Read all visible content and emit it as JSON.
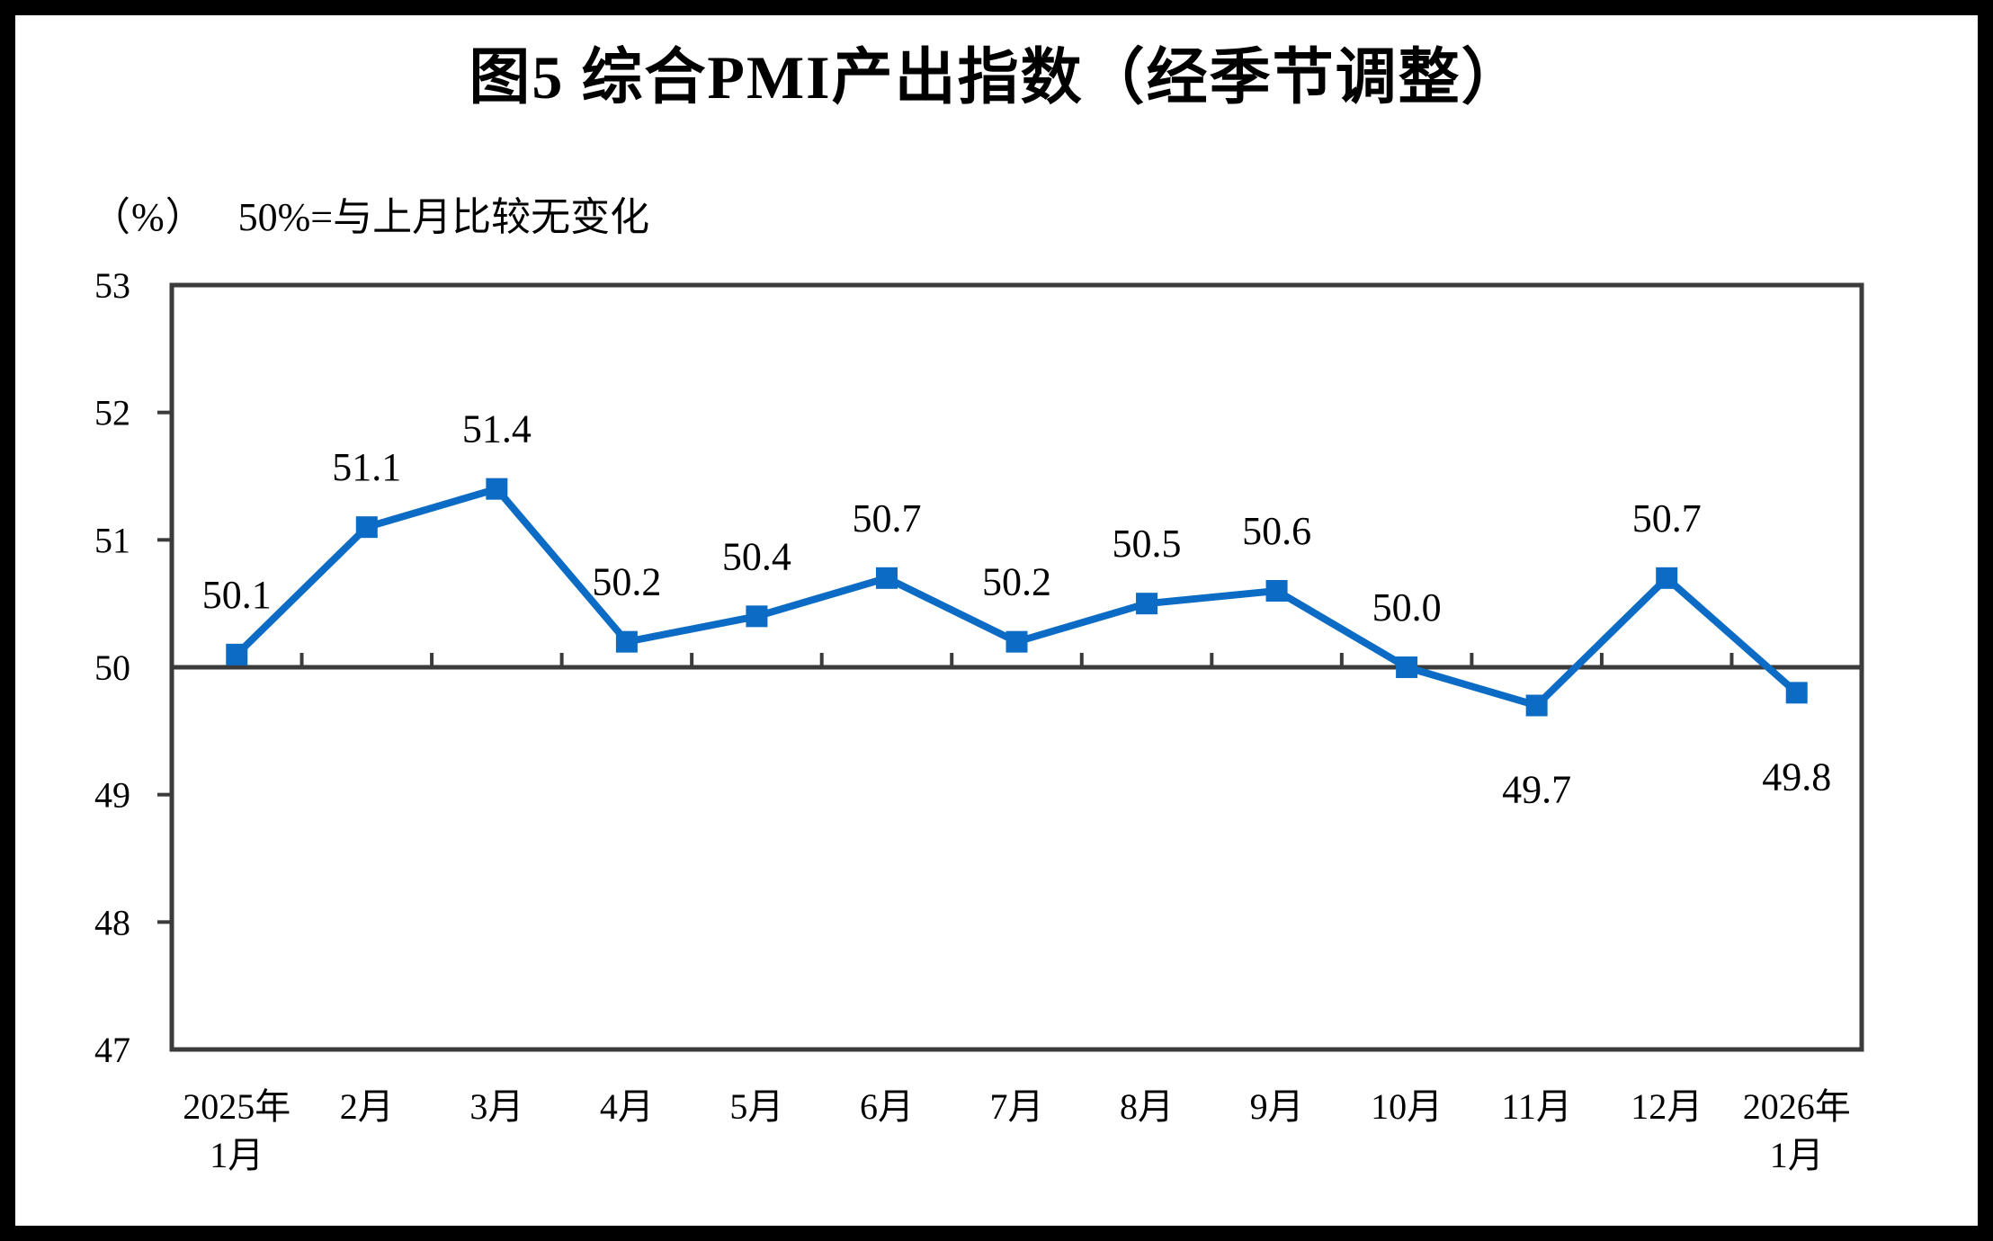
{
  "chart_data": {
    "type": "line",
    "title": "图5 综合PMI产出指数（经季节调整）",
    "unit_label": "（%）",
    "subtitle": "50%=与上月比较无变化",
    "categories": [
      [
        "2025年",
        "1月"
      ],
      [
        "2月"
      ],
      [
        "3月"
      ],
      [
        "4月"
      ],
      [
        "5月"
      ],
      [
        "6月"
      ],
      [
        "7月"
      ],
      [
        "8月"
      ],
      [
        "9月"
      ],
      [
        "10月"
      ],
      [
        "11月"
      ],
      [
        "12月"
      ],
      [
        "2026年",
        "1月"
      ]
    ],
    "values": [
      50.1,
      51.1,
      51.4,
      50.2,
      50.4,
      50.7,
      50.2,
      50.5,
      50.6,
      50.0,
      49.7,
      50.7,
      49.8
    ],
    "value_label_positions": [
      "above",
      "above",
      "above",
      "above",
      "above",
      "above",
      "above",
      "above",
      "above",
      "above",
      "below",
      "above",
      "below"
    ],
    "ylim": [
      47,
      53
    ],
    "ytick_step": 1,
    "baseline_value": 50,
    "grid": "off",
    "legend": "none",
    "marker": "square",
    "colors": {
      "line": "#0C6CC5",
      "axis": "#3B3B3B",
      "text": "#000000",
      "background": "#FFFFFF",
      "frame": "#000000"
    }
  }
}
